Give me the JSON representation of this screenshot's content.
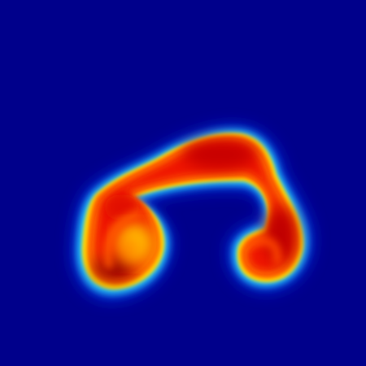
{
  "image": {
    "kind": "scalar-field-heatmap",
    "colormap": "jet",
    "background_color": "#00008b",
    "blob_shape": "curled-arc",
    "colors": {
      "deep": "#7a0000",
      "core": "#e00000",
      "hot": "#ff3a00",
      "warm": "#ff7a00",
      "yellow": "#ffd000",
      "cyan": "#20e0ff",
      "light_blue": "#30a0ff",
      "edge": "#0010c0"
    }
  }
}
